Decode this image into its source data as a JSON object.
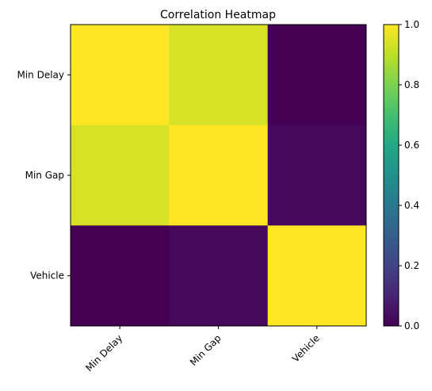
{
  "chart_data": {
    "type": "heatmap",
    "title": "Correlation Heatmap",
    "x_categories": [
      "Min Delay",
      "Min Gap",
      "Vehicle"
    ],
    "y_categories": [
      "Min Delay",
      "Min Gap",
      "Vehicle"
    ],
    "values": [
      [
        1.0,
        0.94,
        0.0
      ],
      [
        0.94,
        1.0,
        0.02
      ],
      [
        0.0,
        0.02,
        1.0
      ]
    ],
    "colormap": "viridis",
    "vmin": 0.0,
    "vmax": 1.0,
    "colorbar_ticks": [
      0.0,
      0.2,
      0.4,
      0.6,
      0.8,
      1.0
    ],
    "colorbar_tick_labels": [
      "0.0",
      "0.2",
      "0.4",
      "0.6",
      "0.8",
      "1.0"
    ],
    "grid": false
  }
}
